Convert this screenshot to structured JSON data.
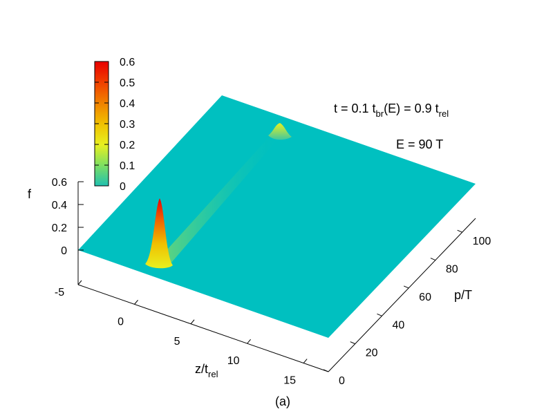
{
  "chart_data": {
    "type": "surface",
    "z_label": "f",
    "x_axis": {
      "label_main": "z/t",
      "label_sub": "rel",
      "range": [
        -5,
        17
      ],
      "ticks": [
        "-5",
        "0",
        "5",
        "10",
        "15"
      ]
    },
    "y_axis": {
      "label": "p/T",
      "range": [
        0,
        110
      ],
      "ticks": [
        "0",
        "20",
        "40",
        "60",
        "80",
        "100"
      ]
    },
    "z_axis": {
      "range": [
        0,
        0.6
      ],
      "ticks": [
        "0",
        "0.2",
        "0.4",
        "0.6"
      ]
    },
    "colorbar": {
      "ticks": [
        "0",
        "0.1",
        "0.2",
        "0.3",
        "0.4",
        "0.5",
        "0.6"
      ],
      "range": [
        0,
        0.6
      ],
      "colors": [
        "#20c0b0",
        "#80e060",
        "#e8f020",
        "#f0c000",
        "#f08000",
        "#f04000",
        "#e80000"
      ]
    },
    "surface_color": "#00c0c0",
    "peaks": [
      {
        "z": 0,
        "p": 22,
        "f": 0.45
      },
      {
        "z": 0,
        "p": 100,
        "f": 0.05
      }
    ],
    "annotation_line1": {
      "t": "t = 0.1 t",
      "br": "br",
      "mid": "(E) = 0.9 t",
      "rel": "rel"
    },
    "annotation_line2": "E = 90 T",
    "caption": "(a)"
  }
}
